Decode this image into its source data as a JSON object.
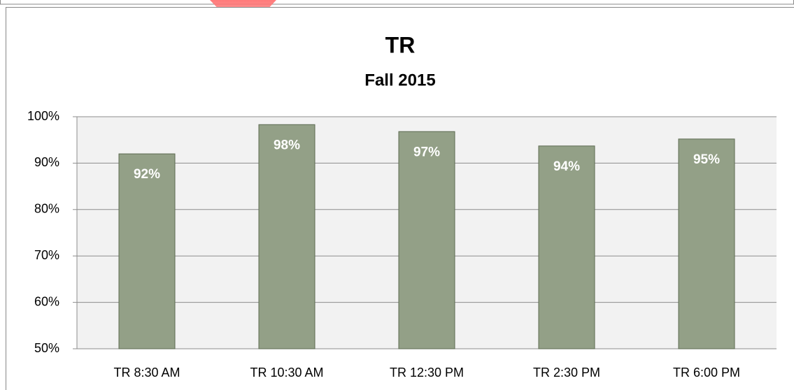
{
  "chart_data": {
    "type": "bar",
    "title": "TR",
    "subtitle": "Fall 2015",
    "categories": [
      "TR 8:30 AM",
      "TR 10:30 AM",
      "TR 12:30 PM",
      "TR 2:30 PM",
      "TR 6:00 PM"
    ],
    "values": [
      92,
      98.3,
      96.8,
      93.7,
      95.2
    ],
    "value_labels": [
      "92%",
      "98%",
      "97%",
      "94%",
      "95%"
    ],
    "color": "#93a087",
    "ylim": [
      50,
      100
    ],
    "yticks": [
      {
        "value": 50,
        "label": "50%"
      },
      {
        "value": 60,
        "label": "60%"
      },
      {
        "value": 70,
        "label": "70%"
      },
      {
        "value": 80,
        "label": "80%"
      },
      {
        "value": 90,
        "label": "90%"
      },
      {
        "value": 100,
        "label": "100%"
      }
    ],
    "grid": true
  }
}
